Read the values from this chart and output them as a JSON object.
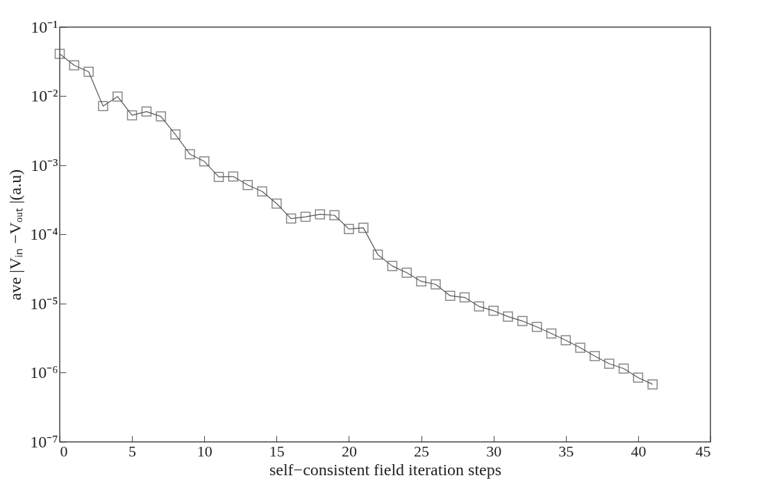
{
  "chart_data": {
    "type": "line",
    "xlabel": "self−consistent field iteration steps",
    "ylabel": "ave |Vᵢₙ −Vₒᵤₜ |(a.u)",
    "log": "y",
    "marker": "square",
    "line_style": "solid",
    "grid": false,
    "legend": false,
    "x": [
      0,
      1,
      2,
      3,
      4,
      5,
      6,
      7,
      8,
      9,
      10,
      11,
      12,
      13,
      14,
      15,
      16,
      17,
      18,
      19,
      20,
      21,
      22,
      23,
      24,
      25,
      26,
      27,
      28,
      29,
      30,
      31,
      32,
      33,
      34,
      35,
      36,
      37,
      38,
      39,
      40,
      41
    ],
    "series": [
      {
        "color": "#555555",
        "values": [
          0.041,
          0.028,
          0.0226,
          0.0072,
          0.0099,
          0.0053,
          0.006,
          0.0051,
          0.0028,
          0.00145,
          0.00114,
          0.00068,
          0.00069,
          0.00052,
          0.00042,
          0.00028,
          0.00017,
          0.00018,
          0.000196,
          0.00019,
          0.00012,
          0.000125,
          5.1e-05,
          3.5e-05,
          2.8e-05,
          2.1e-05,
          1.9e-05,
          1.3e-05,
          1.23e-05,
          9.1e-06,
          7.9e-06,
          6.5e-06,
          5.6e-06,
          4.6e-06,
          3.7e-06,
          2.95e-06,
          2.3e-06,
          1.74e-06,
          1.35e-06,
          1.15e-06,
          8.5e-07,
          6.8e-07
        ]
      }
    ],
    "xlim": [
      0,
      45
    ],
    "xticks": [
      0,
      5,
      10,
      15,
      20,
      25,
      30,
      35,
      40,
      45
    ],
    "ylim": [
      1e-07,
      0.1
    ],
    "yticks": [
      {
        "value": 1e-07,
        "label": "10⁻⁷"
      },
      {
        "value": 1e-06,
        "label": "10⁻⁶"
      },
      {
        "value": 1e-05,
        "label": "10⁻⁵"
      },
      {
        "value": 0.0001,
        "label": "10⁻⁴"
      },
      {
        "value": 0.001,
        "label": "10⁻³"
      },
      {
        "value": 0.01,
        "label": "10⁻²"
      },
      {
        "value": 0.1,
        "label": "10⁻¹"
      }
    ]
  }
}
